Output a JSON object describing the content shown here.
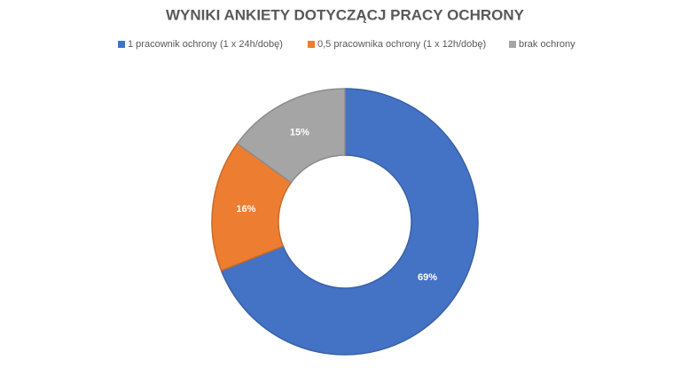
{
  "chart_data": {
    "type": "donut",
    "title": "WYNIKI ANKIETY DOTYCZĄCJ PRACY OCHRONY",
    "categories": [
      "1 pracownik ochrony (1 x 24h/dobę)",
      "0,5 pracownika ochrony (1 x 12h/dobę)",
      "brak ochrony"
    ],
    "values": [
      69,
      16,
      15
    ],
    "value_labels": [
      "69%",
      "16%",
      "15%"
    ],
    "colors": [
      "#4472c4",
      "#ed7d31",
      "#a5a5a5"
    ],
    "legend": "top"
  }
}
